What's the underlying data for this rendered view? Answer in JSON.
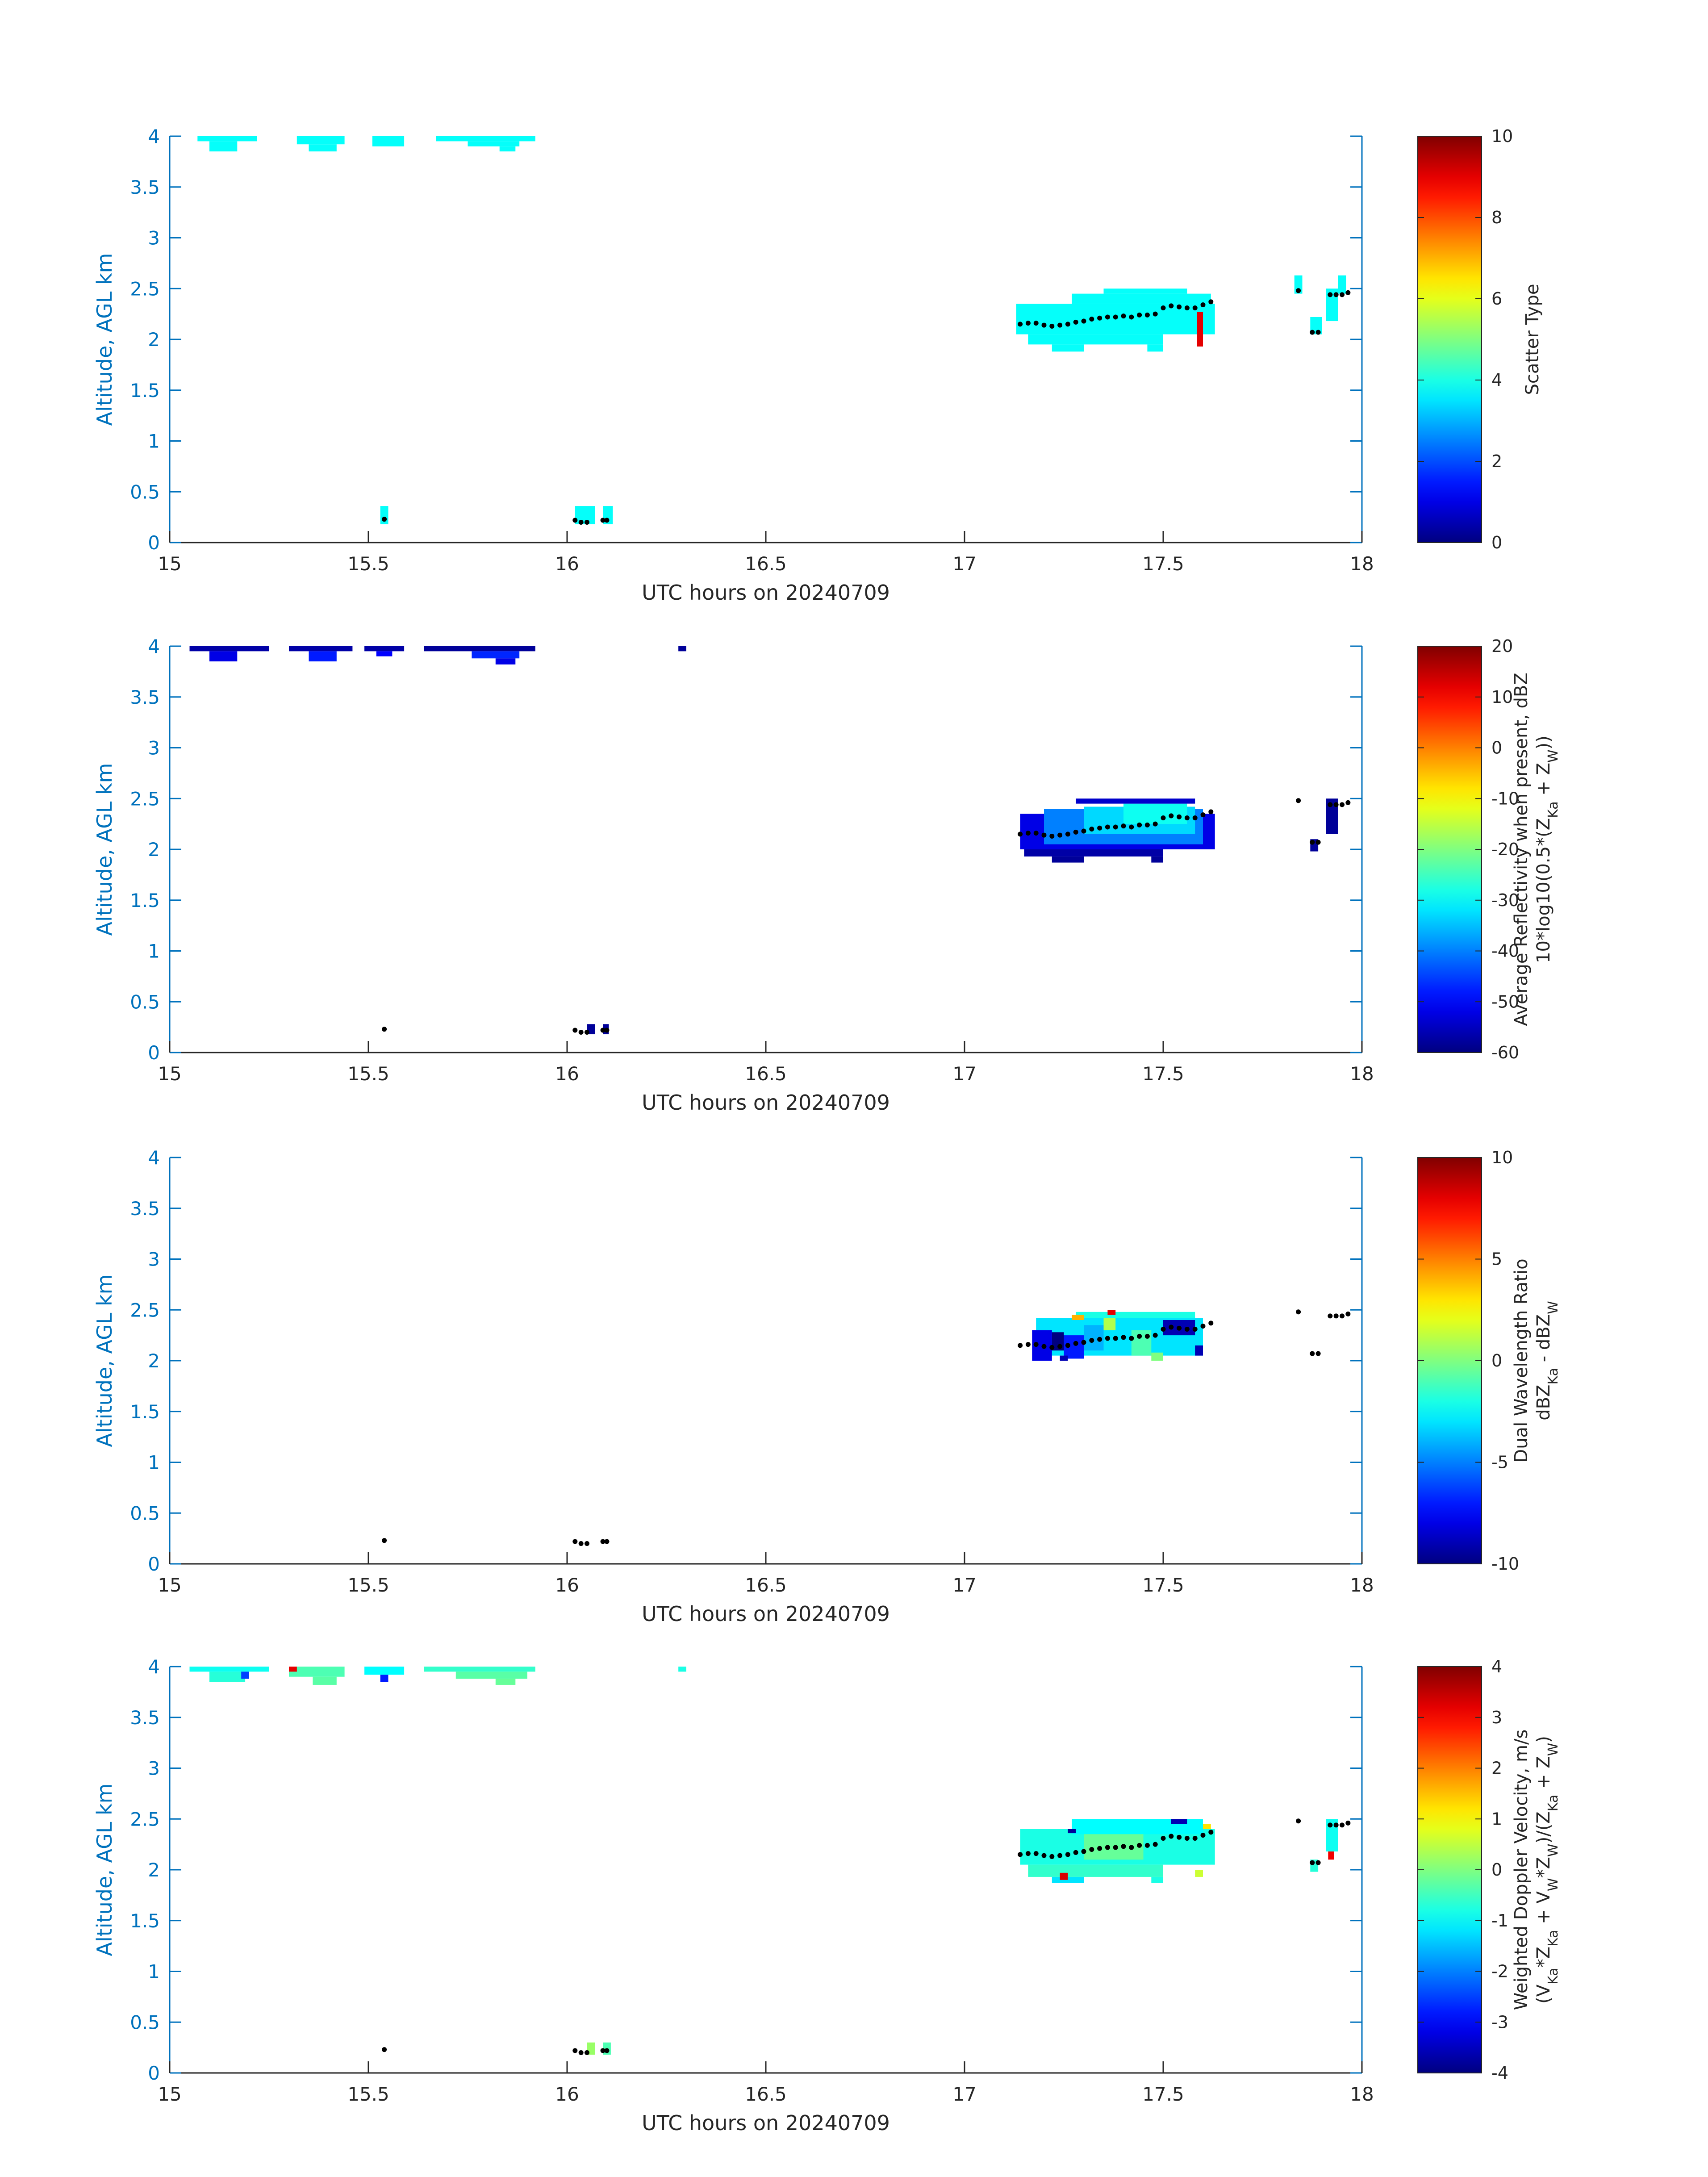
{
  "colors": {
    "axis_blue": "#0072bd",
    "text_dark": "#262626",
    "tick_gray": "#262626",
    "cloud_base_dot": "#000000"
  },
  "chart_data": [
    {
      "type": "heatmap",
      "id": "scatter-type",
      "xlabel": "UTC hours on 20240709",
      "ylabel": "Altitude, AGL km",
      "xlim": [
        15,
        18
      ],
      "ylim": [
        0,
        4
      ],
      "xticks": [
        15,
        15.5,
        16,
        16.5,
        17,
        17.5,
        18
      ],
      "yticks": [
        0,
        0.5,
        1,
        1.5,
        2,
        2.5,
        3,
        3.5,
        4
      ],
      "colorbar": {
        "label_lines": [
          "Scatter Type"
        ],
        "clim": [
          0,
          10
        ],
        "ticks": [
          0,
          2,
          4,
          6,
          8,
          10
        ],
        "colormap": "jet"
      },
      "cells": [
        {
          "x0": 15.07,
          "x1": 15.22,
          "y0": 3.95,
          "y1": 4.0,
          "v": 3.8
        },
        {
          "x0": 15.1,
          "x1": 15.17,
          "y0": 3.85,
          "y1": 3.95,
          "v": 3.8
        },
        {
          "x0": 15.32,
          "x1": 15.44,
          "y0": 3.92,
          "y1": 4.0,
          "v": 3.8
        },
        {
          "x0": 15.35,
          "x1": 15.42,
          "y0": 3.85,
          "y1": 3.92,
          "v": 3.8
        },
        {
          "x0": 15.51,
          "x1": 15.59,
          "y0": 3.9,
          "y1": 4.0,
          "v": 3.8
        },
        {
          "x0": 15.67,
          "x1": 15.92,
          "y0": 3.95,
          "y1": 4.0,
          "v": 3.8
        },
        {
          "x0": 15.75,
          "x1": 15.88,
          "y0": 3.9,
          "y1": 3.95,
          "v": 3.8
        },
        {
          "x0": 15.83,
          "x1": 15.87,
          "y0": 3.85,
          "y1": 3.9,
          "v": 3.8
        },
        {
          "x0": 15.53,
          "x1": 15.55,
          "y0": 0.18,
          "y1": 0.36,
          "v": 3.8
        },
        {
          "x0": 16.02,
          "x1": 16.07,
          "y0": 0.18,
          "y1": 0.36,
          "v": 3.8
        },
        {
          "x0": 16.09,
          "x1": 16.115,
          "y0": 0.18,
          "y1": 0.36,
          "v": 3.8
        },
        {
          "x0": 17.13,
          "x1": 17.63,
          "y0": 2.05,
          "y1": 2.35,
          "v": 3.8
        },
        {
          "x0": 17.27,
          "x1": 17.62,
          "y0": 2.35,
          "y1": 2.45,
          "v": 3.8
        },
        {
          "x0": 17.35,
          "x1": 17.56,
          "y0": 2.45,
          "y1": 2.5,
          "v": 3.8
        },
        {
          "x0": 17.16,
          "x1": 17.5,
          "y0": 1.95,
          "y1": 2.05,
          "v": 3.8
        },
        {
          "x0": 17.22,
          "x1": 17.3,
          "y0": 1.88,
          "y1": 1.95,
          "v": 3.8
        },
        {
          "x0": 17.46,
          "x1": 17.5,
          "y0": 1.88,
          "y1": 1.95,
          "v": 3.8
        },
        {
          "x0": 17.585,
          "x1": 17.6,
          "y0": 1.93,
          "y1": 2.27,
          "v": 9.0
        },
        {
          "x0": 17.83,
          "x1": 17.85,
          "y0": 2.45,
          "y1": 2.63,
          "v": 3.8
        },
        {
          "x0": 17.87,
          "x1": 17.9,
          "y0": 2.05,
          "y1": 2.22,
          "v": 3.8
        },
        {
          "x0": 17.91,
          "x1": 17.94,
          "y0": 2.18,
          "y1": 2.5,
          "v": 3.8
        },
        {
          "x0": 17.94,
          "x1": 17.96,
          "y0": 2.45,
          "y1": 2.63,
          "v": 3.8
        }
      ]
    },
    {
      "type": "heatmap",
      "id": "reflectivity",
      "xlabel": "UTC hours on 20240709",
      "ylabel": "Altitude, AGL km",
      "xlim": [
        15,
        18
      ],
      "ylim": [
        0,
        4
      ],
      "xticks": [
        15,
        15.5,
        16,
        16.5,
        17,
        17.5,
        18
      ],
      "yticks": [
        0,
        0.5,
        1,
        1.5,
        2,
        2.5,
        3,
        3.5,
        4
      ],
      "colorbar": {
        "label_lines": [
          "Average Reflectivity when present, dBZ",
          "10*log10(0.5*(Z_Ka + Z_W))"
        ],
        "clim": [
          -60,
          20
        ],
        "ticks": [
          -60,
          -50,
          -40,
          -30,
          -20,
          -10,
          0,
          10,
          20
        ],
        "colormap": "jet"
      },
      "cells": [
        {
          "x0": 15.05,
          "x1": 15.25,
          "y0": 3.95,
          "y1": 4.0,
          "v": -57
        },
        {
          "x0": 15.1,
          "x1": 15.17,
          "y0": 3.85,
          "y1": 3.95,
          "v": -52
        },
        {
          "x0": 15.3,
          "x1": 15.46,
          "y0": 3.95,
          "y1": 4.0,
          "v": -57
        },
        {
          "x0": 15.35,
          "x1": 15.42,
          "y0": 3.85,
          "y1": 3.95,
          "v": -48
        },
        {
          "x0": 15.49,
          "x1": 15.59,
          "y0": 3.95,
          "y1": 4.0,
          "v": -57
        },
        {
          "x0": 15.52,
          "x1": 15.56,
          "y0": 3.9,
          "y1": 3.95,
          "v": -50
        },
        {
          "x0": 15.64,
          "x1": 15.92,
          "y0": 3.95,
          "y1": 4.0,
          "v": -58
        },
        {
          "x0": 15.76,
          "x1": 15.88,
          "y0": 3.88,
          "y1": 3.95,
          "v": -47
        },
        {
          "x0": 15.82,
          "x1": 15.87,
          "y0": 3.82,
          "y1": 3.88,
          "v": -52
        },
        {
          "x0": 16.28,
          "x1": 16.3,
          "y0": 3.95,
          "y1": 4.0,
          "v": -58
        },
        {
          "x0": 16.05,
          "x1": 16.07,
          "y0": 0.18,
          "y1": 0.28,
          "v": -58
        },
        {
          "x0": 16.09,
          "x1": 16.105,
          "y0": 0.18,
          "y1": 0.28,
          "v": -58
        },
        {
          "x0": 17.14,
          "x1": 17.63,
          "y0": 2.0,
          "y1": 2.35,
          "v": -52
        },
        {
          "x0": 17.2,
          "x1": 17.6,
          "y0": 2.05,
          "y1": 2.4,
          "v": -40
        },
        {
          "x0": 17.3,
          "x1": 17.58,
          "y0": 2.15,
          "y1": 2.42,
          "v": -33
        },
        {
          "x0": 17.4,
          "x1": 17.56,
          "y0": 2.25,
          "y1": 2.45,
          "v": -29
        },
        {
          "x0": 17.28,
          "x1": 17.58,
          "y0": 2.45,
          "y1": 2.5,
          "v": -54
        },
        {
          "x0": 17.15,
          "x1": 17.5,
          "y0": 1.93,
          "y1": 2.0,
          "v": -57
        },
        {
          "x0": 17.22,
          "x1": 17.3,
          "y0": 1.87,
          "y1": 1.93,
          "v": -58
        },
        {
          "x0": 17.47,
          "x1": 17.5,
          "y0": 1.87,
          "y1": 1.93,
          "v": -58
        },
        {
          "x0": 17.87,
          "x1": 17.89,
          "y0": 1.98,
          "y1": 2.1,
          "v": -58
        },
        {
          "x0": 17.91,
          "x1": 17.94,
          "y0": 2.15,
          "y1": 2.5,
          "v": -58
        }
      ]
    },
    {
      "type": "heatmap",
      "id": "dual-wavelength-ratio",
      "xlabel": "UTC hours on 20240709",
      "ylabel": "Altitude, AGL km",
      "xlim": [
        15,
        18
      ],
      "ylim": [
        0,
        4
      ],
      "xticks": [
        15,
        15.5,
        16,
        16.5,
        17,
        17.5,
        18
      ],
      "yticks": [
        0,
        0.5,
        1,
        1.5,
        2,
        2.5,
        3,
        3.5,
        4
      ],
      "colorbar": {
        "label_lines": [
          "Dual Wavelength Ratio",
          "dBZ_Ka - dBZ_W"
        ],
        "clim": [
          -10,
          10
        ],
        "ticks": [
          -10,
          -5,
          0,
          5,
          10
        ],
        "colormap": "jet"
      },
      "cells": [
        {
          "x0": 17.18,
          "x1": 17.6,
          "y0": 2.05,
          "y1": 2.42,
          "v": -3
        },
        {
          "x0": 17.28,
          "x1": 17.58,
          "y0": 2.42,
          "y1": 2.48,
          "v": -2
        },
        {
          "x0": 17.17,
          "x1": 17.22,
          "y0": 2.0,
          "y1": 2.3,
          "v": -8
        },
        {
          "x0": 17.22,
          "x1": 17.25,
          "y0": 2.1,
          "y1": 2.28,
          "v": -10
        },
        {
          "x0": 17.25,
          "x1": 17.3,
          "y0": 2.02,
          "y1": 2.25,
          "v": -7
        },
        {
          "x0": 17.3,
          "x1": 17.35,
          "y0": 2.1,
          "y1": 2.35,
          "v": -4
        },
        {
          "x0": 17.35,
          "x1": 17.38,
          "y0": 2.3,
          "y1": 2.42,
          "v": 1
        },
        {
          "x0": 17.36,
          "x1": 17.38,
          "y0": 2.45,
          "y1": 2.5,
          "v": 8
        },
        {
          "x0": 17.42,
          "x1": 17.47,
          "y0": 2.05,
          "y1": 2.3,
          "v": -1
        },
        {
          "x0": 17.47,
          "x1": 17.5,
          "y0": 2.0,
          "y1": 2.08,
          "v": 0
        },
        {
          "x0": 17.5,
          "x1": 17.58,
          "y0": 2.25,
          "y1": 2.4,
          "v": -9
        },
        {
          "x0": 17.58,
          "x1": 17.6,
          "y0": 2.05,
          "y1": 2.15,
          "v": -9
        },
        {
          "x0": 17.27,
          "x1": 17.3,
          "y0": 2.4,
          "y1": 2.45,
          "v": 4
        },
        {
          "x0": 17.24,
          "x1": 17.26,
          "y0": 2.0,
          "y1": 2.05,
          "v": -9
        }
      ]
    },
    {
      "type": "heatmap",
      "id": "doppler-velocity",
      "xlabel": "UTC hours on 20240709",
      "ylabel": "Altitude, AGL km",
      "xlim": [
        15,
        18
      ],
      "ylim": [
        0,
        4
      ],
      "xticks": [
        15,
        15.5,
        16,
        16.5,
        17,
        17.5,
        18
      ],
      "yticks": [
        0,
        0.5,
        1,
        1.5,
        2,
        2.5,
        3,
        3.5,
        4
      ],
      "colorbar": {
        "label_lines": [
          "Weighted Doppler Velocity, m/s",
          "(V_Ka*Z_Ka + V_W*Z_W)/(Z_Ka + Z_W)"
        ],
        "clim": [
          -4,
          4
        ],
        "ticks": [
          -4,
          -3,
          -2,
          -1,
          0,
          1,
          2,
          3,
          4
        ],
        "colormap": "jet"
      },
      "cells": [
        {
          "x0": 15.05,
          "x1": 15.25,
          "y0": 3.95,
          "y1": 4.0,
          "v": -0.9
        },
        {
          "x0": 15.1,
          "x1": 15.19,
          "y0": 3.85,
          "y1": 3.95,
          "v": -0.7
        },
        {
          "x0": 15.18,
          "x1": 15.2,
          "y0": 3.88,
          "y1": 3.95,
          "v": -2.5
        },
        {
          "x0": 15.3,
          "x1": 15.44,
          "y0": 3.9,
          "y1": 4.0,
          "v": -0.4
        },
        {
          "x0": 15.36,
          "x1": 15.42,
          "y0": 3.82,
          "y1": 3.9,
          "v": -0.3
        },
        {
          "x0": 15.3,
          "x1": 15.32,
          "y0": 3.95,
          "y1": 4.0,
          "v": 3.2
        },
        {
          "x0": 15.49,
          "x1": 15.59,
          "y0": 3.92,
          "y1": 4.0,
          "v": -1.0
        },
        {
          "x0": 15.53,
          "x1": 15.55,
          "y0": 3.85,
          "y1": 3.92,
          "v": -2.8
        },
        {
          "x0": 15.64,
          "x1": 15.92,
          "y0": 3.95,
          "y1": 4.0,
          "v": -0.6
        },
        {
          "x0": 15.72,
          "x1": 15.9,
          "y0": 3.88,
          "y1": 3.95,
          "v": -0.3
        },
        {
          "x0": 15.82,
          "x1": 15.87,
          "y0": 3.82,
          "y1": 3.88,
          "v": -0.2
        },
        {
          "x0": 16.28,
          "x1": 16.3,
          "y0": 3.95,
          "y1": 4.0,
          "v": -0.8
        },
        {
          "x0": 16.05,
          "x1": 16.07,
          "y0": 0.18,
          "y1": 0.3,
          "v": 0.2
        },
        {
          "x0": 16.09,
          "x1": 16.11,
          "y0": 0.18,
          "y1": 0.3,
          "v": -0.4
        },
        {
          "x0": 17.14,
          "x1": 17.63,
          "y0": 2.05,
          "y1": 2.4,
          "v": -0.8
        },
        {
          "x0": 17.27,
          "x1": 17.6,
          "y0": 2.35,
          "y1": 2.5,
          "v": -1.0
        },
        {
          "x0": 17.16,
          "x1": 17.5,
          "y0": 1.93,
          "y1": 2.05,
          "v": -0.6
        },
        {
          "x0": 17.3,
          "x1": 17.45,
          "y0": 2.1,
          "y1": 2.35,
          "v": -0.2
        },
        {
          "x0": 17.22,
          "x1": 17.3,
          "y0": 1.87,
          "y1": 1.93,
          "v": -1.2
        },
        {
          "x0": 17.47,
          "x1": 17.5,
          "y0": 1.87,
          "y1": 1.93,
          "v": -0.8
        },
        {
          "x0": 17.24,
          "x1": 17.26,
          "y0": 1.9,
          "y1": 1.97,
          "v": 3.3
        },
        {
          "x0": 17.52,
          "x1": 17.56,
          "y0": 2.45,
          "y1": 2.5,
          "v": -3.6
        },
        {
          "x0": 17.58,
          "x1": 17.6,
          "y0": 1.93,
          "y1": 2.0,
          "v": 0.6
        },
        {
          "x0": 17.6,
          "x1": 17.62,
          "y0": 2.4,
          "y1": 2.45,
          "v": 1.2
        },
        {
          "x0": 17.26,
          "x1": 17.28,
          "y0": 2.36,
          "y1": 2.4,
          "v": -3.8
        },
        {
          "x0": 17.87,
          "x1": 17.89,
          "y0": 1.98,
          "y1": 2.1,
          "v": -0.7
        },
        {
          "x0": 17.91,
          "x1": 17.94,
          "y0": 2.18,
          "y1": 2.5,
          "v": -0.9
        },
        {
          "x0": 17.915,
          "x1": 17.93,
          "y0": 2.1,
          "y1": 2.18,
          "v": 3.1
        }
      ]
    }
  ],
  "cloud_base_points": {
    "x": [
      15.54,
      16.02,
      16.035,
      16.05,
      16.09,
      16.1,
      17.14,
      17.16,
      17.18,
      17.2,
      17.22,
      17.24,
      17.26,
      17.28,
      17.3,
      17.32,
      17.34,
      17.36,
      17.38,
      17.4,
      17.42,
      17.44,
      17.46,
      17.48,
      17.5,
      17.52,
      17.54,
      17.56,
      17.58,
      17.6,
      17.62,
      17.84,
      17.875,
      17.89,
      17.92,
      17.935,
      17.95,
      17.965
    ],
    "y": [
      0.23,
      0.22,
      0.2,
      0.2,
      0.22,
      0.22,
      2.15,
      2.16,
      2.16,
      2.14,
      2.13,
      2.14,
      2.15,
      2.17,
      2.18,
      2.2,
      2.21,
      2.22,
      2.22,
      2.23,
      2.22,
      2.24,
      2.24,
      2.25,
      2.31,
      2.33,
      2.32,
      2.31,
      2.31,
      2.34,
      2.37,
      2.48,
      2.07,
      2.07,
      2.44,
      2.44,
      2.44,
      2.46
    ]
  }
}
